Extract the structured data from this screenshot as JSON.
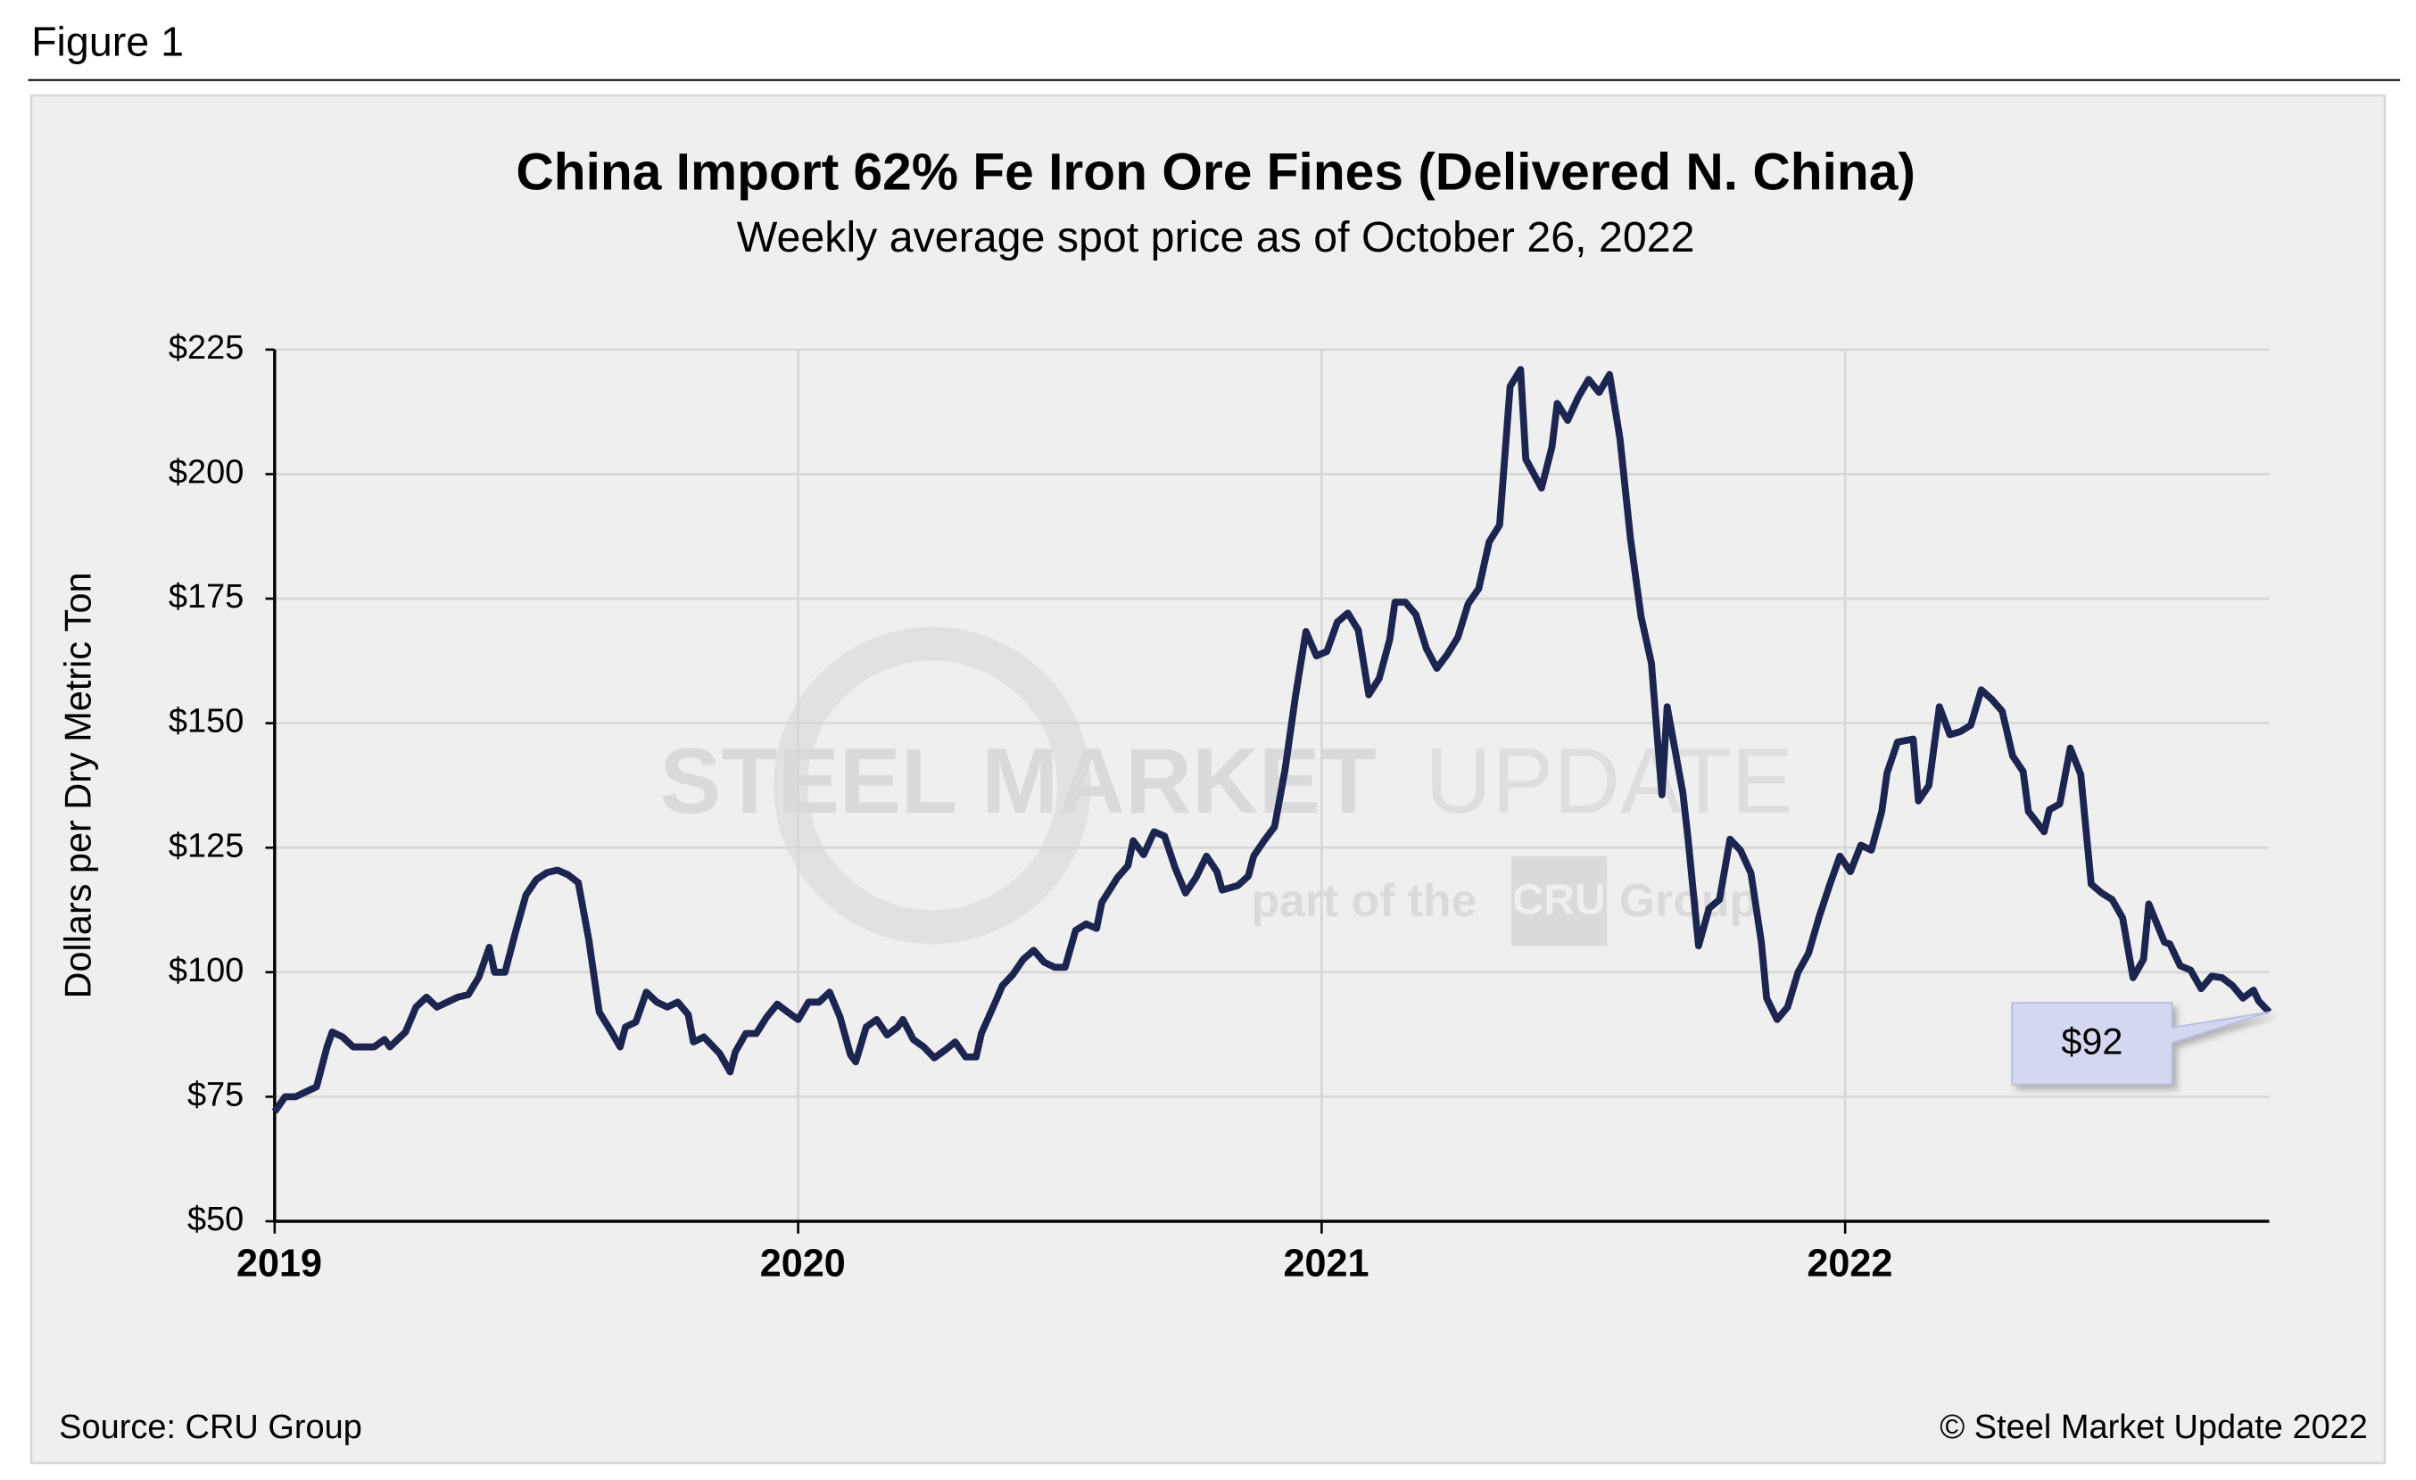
{
  "figure_label": "Figure 1",
  "source": "Source: CRU Group",
  "copyright": "© Steel Market Update 2022",
  "watermark": {
    "title": "STEEL MARKET",
    "title2": "UPDATE",
    "tagline": "part of the",
    "logo": "CRU",
    "group": "Group"
  },
  "chart_data": {
    "type": "line",
    "title": "China Import 62% Fe Iron Ore Fines (Delivered N. China)",
    "subtitle": "Weekly average spot price as of October 26, 2022",
    "y_label": "Dollars per Dry Metric Ton",
    "annotation": "$92",
    "xlim": [
      2019,
      2022.81
    ],
    "xticks": [
      2019,
      2020,
      2021,
      2022
    ],
    "ylim": [
      50,
      225
    ],
    "yticks": [
      {
        "value": 50,
        "label": "$50"
      },
      {
        "value": 75,
        "label": "$75"
      },
      {
        "value": 100,
        "label": "$100"
      },
      {
        "value": 125,
        "label": "$125"
      },
      {
        "value": 150,
        "label": "$150"
      },
      {
        "value": 175,
        "label": "$175"
      },
      {
        "value": 200,
        "label": "$200"
      },
      {
        "value": 225,
        "label": "$225"
      }
    ],
    "grid": true,
    "x": [
      2019.0,
      2019.02,
      2019.04,
      2019.06,
      2019.08,
      2019.1,
      2019.11,
      2019.13,
      2019.15,
      2019.17,
      2019.19,
      2019.21,
      2019.22,
      2019.25,
      2019.27,
      2019.29,
      2019.31,
      2019.33,
      2019.35,
      2019.37,
      2019.39,
      2019.41,
      2019.42,
      2019.44,
      2019.46,
      2019.48,
      2019.5,
      2019.52,
      2019.54,
      2019.56,
      2019.58,
      2019.6,
      2019.62,
      2019.64,
      2019.66,
      2019.67,
      2019.69,
      2019.71,
      2019.73,
      2019.75,
      2019.77,
      2019.79,
      2019.8,
      2019.82,
      2019.85,
      2019.87,
      2019.88,
      2019.9,
      2019.92,
      2019.94,
      2019.96,
      2019.98,
      2020.0,
      2020.02,
      2020.04,
      2020.06,
      2020.08,
      2020.1,
      2020.11,
      2020.13,
      2020.15,
      2020.17,
      2020.19,
      2020.2,
      2020.22,
      2020.24,
      2020.26,
      2020.28,
      2020.3,
      2020.32,
      2020.34,
      2020.35,
      2020.38,
      2020.39,
      2020.41,
      2020.43,
      2020.45,
      2020.47,
      2020.49,
      2020.51,
      2020.53,
      2020.55,
      2020.57,
      2020.58,
      2020.61,
      2020.63,
      2020.64,
      2020.66,
      2020.68,
      2020.7,
      2020.72,
      2020.74,
      2020.76,
      2020.78,
      2020.8,
      2020.81,
      2020.84,
      2020.86,
      2020.87,
      2020.89,
      2020.91,
      2020.93,
      2020.95,
      2020.97,
      2020.99,
      2021.01,
      2021.03,
      2021.05,
      2021.07,
      2021.09,
      2021.11,
      2021.13,
      2021.14,
      2021.16,
      2021.18,
      2021.2,
      2021.22,
      2021.24,
      2021.26,
      2021.28,
      2021.3,
      2021.32,
      2021.34,
      2021.36,
      2021.38,
      2021.39,
      2021.42,
      2021.44,
      2021.45,
      2021.47,
      2021.49,
      2021.51,
      2021.53,
      2021.55,
      2021.57,
      2021.59,
      2021.61,
      2021.63,
      2021.65,
      2021.66,
      2021.69,
      2021.7,
      2021.72,
      2021.74,
      2021.76,
      2021.78,
      2021.8,
      2021.82,
      2021.84,
      2021.85,
      2021.87,
      2021.89,
      2021.91,
      2021.93,
      2021.95,
      2021.97,
      2021.99,
      2022.01,
      2022.03,
      2022.05,
      2022.07,
      2022.08,
      2022.1,
      2022.13,
      2022.14,
      2022.16,
      2022.18,
      2022.2,
      2022.22,
      2022.24,
      2022.26,
      2022.28,
      2022.3,
      2022.32,
      2022.34,
      2022.35,
      2022.38,
      2022.39,
      2022.41,
      2022.43,
      2022.45,
      2022.47,
      2022.49,
      2022.51,
      2022.53,
      2022.55,
      2022.57,
      2022.58,
      2022.61,
      2022.62,
      2022.64,
      2022.66,
      2022.68,
      2022.7,
      2022.72,
      2022.74,
      2022.76,
      2022.78,
      2022.79,
      2022.81
    ],
    "series": [
      {
        "name": "62% Fe Iron Ore Fines",
        "color": "#1c2450",
        "values": [
          72,
          75,
          75,
          76,
          77,
          85,
          88,
          87,
          85,
          85,
          85,
          86.5,
          85,
          88,
          93,
          95,
          93,
          94,
          95,
          95.5,
          99,
          105,
          100,
          100,
          108,
          115.5,
          118.6,
          120,
          120.5,
          119.6,
          118,
          106.6,
          92,
          88.6,
          85,
          89,
          90,
          96,
          94,
          93,
          94,
          91.5,
          86,
          87,
          83.7,
          80,
          84,
          87.7,
          87.7,
          91,
          93.6,
          92,
          90.5,
          94,
          94,
          96,
          91,
          83.4,
          82,
          89,
          90.5,
          87.4,
          89,
          90.5,
          86.5,
          85,
          82.8,
          84.3,
          86,
          83,
          83,
          87.7,
          94.8,
          97.3,
          99.5,
          102.6,
          104.4,
          102,
          101,
          101,
          108.4,
          109.7,
          108.8,
          114,
          119,
          121.4,
          126.4,
          123.6,
          128.2,
          127.3,
          121,
          115.9,
          119,
          123.3,
          120.2,
          116.5,
          117.4,
          119.3,
          123.3,
          126.4,
          129.2,
          140.6,
          155.4,
          168.4,
          163.5,
          164.4,
          170.3,
          172.1,
          168.7,
          155.7,
          159,
          166.8,
          174.3,
          174.3,
          171.8,
          165,
          161,
          163.8,
          167.2,
          174,
          177,
          186.4,
          189.8,
          217.6,
          221,
          203,
          197.2,
          205.5,
          214.2,
          210.8,
          215.4,
          219,
          216.4,
          220,
          207,
          187,
          171.5,
          162,
          135.6,
          153.3,
          136,
          126.7,
          105.3,
          112.8,
          114.6,
          126.7,
          124.5,
          119.9,
          106,
          94.8,
          90.5,
          93,
          100,
          103.8,
          111,
          117.4,
          123.3,
          120.2,
          125.5,
          124.5,
          132.3,
          140,
          146.2,
          146.8,
          134.4,
          137.5,
          153.3,
          147.7,
          148.3,
          149.6,
          156.7,
          154.8,
          152.4,
          143.4,
          140.3,
          132.3,
          128.2,
          132.6,
          133.8,
          145,
          139.7,
          117.7,
          115.9,
          114.6,
          110.9,
          98.9,
          102.6,
          113.7,
          106,
          105.7,
          101.3,
          100.4,
          96.7,
          99.2,
          98.9,
          97.3,
          94.8,
          96.4,
          94.2,
          92
        ]
      }
    ]
  }
}
